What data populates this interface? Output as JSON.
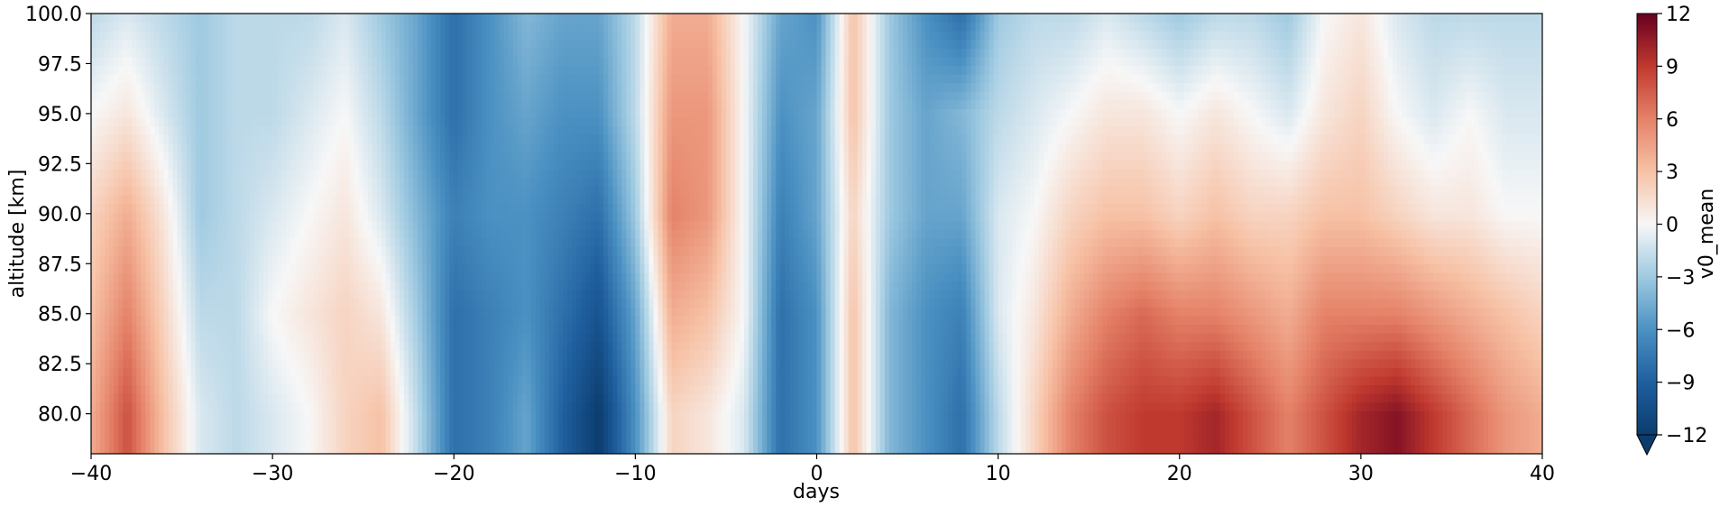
{
  "chart_data": {
    "type": "heatmap",
    "xlabel": "days",
    "ylabel": "altitude [km]",
    "xlim": [
      -40,
      40
    ],
    "ylim": [
      78,
      100
    ],
    "xticks": [
      -40,
      -30,
      -20,
      -10,
      0,
      10,
      20,
      30,
      40
    ],
    "xtick_labels": [
      "−40",
      "−30",
      "−20",
      "−10",
      "0",
      "10",
      "20",
      "30",
      "40"
    ],
    "yticks": [
      80.0,
      82.5,
      85.0,
      87.5,
      90.0,
      92.5,
      95.0,
      97.5,
      100.0
    ],
    "ytick_labels": [
      "80.0",
      "82.5",
      "85.0",
      "87.5",
      "90.0",
      "92.5",
      "95.0",
      "97.5",
      "100.0"
    ],
    "colorbar": {
      "label": "v0_mean",
      "colormap": "RdBu_r",
      "range": [
        -12,
        12
      ],
      "extend": "min",
      "ticks": [
        -12,
        -9,
        -6,
        -3,
        0,
        3,
        6,
        9,
        12
      ],
      "tick_labels": [
        "−12",
        "−9",
        "−6",
        "−3",
        "0",
        "3",
        "6",
        "9",
        "12"
      ]
    },
    "filled_field_v0_mean": {
      "days": [
        -40,
        -38,
        -36,
        -34,
        -32,
        -30,
        -28,
        -26,
        -24,
        -22,
        -20,
        -18,
        -16,
        -14,
        -12,
        -10,
        -8,
        -6,
        -4,
        -2,
        0,
        2,
        4,
        6,
        8,
        10,
        12,
        14,
        16,
        18,
        20,
        22,
        24,
        26,
        28,
        30,
        32,
        34,
        36,
        38,
        40
      ],
      "altitudes_km": [
        80.0,
        85.0,
        90.0,
        95.0,
        100.0
      ],
      "values": [
        [
          4,
          8,
          3,
          -1,
          -2,
          -1,
          0,
          2,
          3,
          -2,
          -8,
          -7,
          -5,
          -9,
          -12,
          -6,
          2,
          1,
          -1,
          -8,
          -6,
          3,
          -4,
          -6,
          -8,
          -2,
          2,
          6,
          8,
          9,
          9,
          10,
          8,
          6,
          8,
          10,
          11,
          9,
          7,
          5,
          4
        ],
        [
          3,
          6,
          2,
          -2,
          -2,
          0,
          1,
          2,
          1,
          -3,
          -8,
          -7,
          -6,
          -8,
          -10,
          -5,
          4,
          3,
          0,
          -8,
          -6,
          3,
          -4,
          -6,
          -7,
          -1,
          1,
          4,
          6,
          7,
          6,
          6,
          5,
          4,
          6,
          6,
          6,
          5,
          4,
          3,
          2
        ],
        [
          2,
          4,
          1,
          -3,
          -2,
          -1,
          0,
          1,
          -1,
          -4,
          -7,
          -6,
          -6,
          -7,
          -8,
          -3,
          6,
          5,
          0,
          -7,
          -5,
          2,
          -3,
          -5,
          -5,
          -1,
          0,
          2,
          3,
          3,
          2,
          3,
          2,
          2,
          3,
          3,
          2,
          1,
          1,
          0,
          0
        ],
        [
          0,
          1,
          -1,
          -3,
          -2,
          -2,
          -1,
          0,
          -2,
          -5,
          -8,
          -6,
          -5,
          -6,
          -6,
          -2,
          5,
          5,
          0,
          -6,
          -5,
          3,
          -3,
          -5,
          -4,
          -2,
          -1,
          0,
          1,
          1,
          0,
          1,
          0,
          -1,
          1,
          2,
          0,
          -1,
          0,
          -1,
          -1
        ],
        [
          -2,
          -1,
          -2,
          -3,
          -2,
          -2,
          -2,
          -1,
          -3,
          -5,
          -8,
          -6,
          -4,
          -5,
          -5,
          -2,
          4,
          4,
          0,
          -5,
          -6,
          3,
          -3,
          -6,
          -8,
          -3,
          -2,
          -2,
          -1,
          -2,
          -3,
          -2,
          -2,
          -3,
          0,
          1,
          -1,
          -2,
          -2,
          -2,
          -2
        ]
      ]
    }
  }
}
